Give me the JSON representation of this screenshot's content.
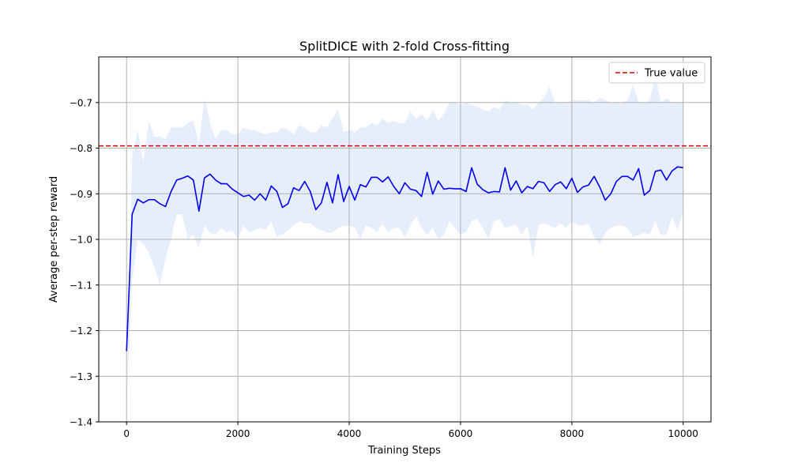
{
  "chart_data": {
    "type": "line",
    "title": "SplitDICE with 2-fold Cross-fitting",
    "xlabel": "Training Steps",
    "ylabel": "Average per-step reward",
    "xlim": [
      -500,
      10500
    ],
    "ylim": [
      -1.4,
      -0.6
    ],
    "xticks": [
      0,
      2000,
      4000,
      6000,
      8000,
      10000
    ],
    "xtick_labels": [
      "0",
      "2000",
      "4000",
      "6000",
      "8000",
      "10000"
    ],
    "yticks": [
      -1.4,
      -1.3,
      -1.2,
      -1.1,
      -1.0,
      -0.9,
      -0.8,
      -0.7
    ],
    "ytick_labels": [
      "−1.4",
      "−1.3",
      "−1.2",
      "−1.1",
      "−1.0",
      "−0.9",
      "−0.8",
      "−0.7"
    ],
    "grid": true,
    "legend_position": "top-right",
    "colors": {
      "mean": "#0000ee",
      "band": "#e6eefc",
      "true": "#dd0000",
      "grid": "#b0b0b0"
    },
    "reference_line": {
      "name": "True value",
      "y": -0.795
    },
    "x": [
      0,
      100,
      200,
      300,
      400,
      500,
      600,
      700,
      800,
      900,
      1000,
      1100,
      1200,
      1300,
      1400,
      1500,
      1600,
      1700,
      1800,
      1900,
      2000,
      2100,
      2200,
      2300,
      2400,
      2500,
      2600,
      2700,
      2800,
      2900,
      3000,
      3100,
      3200,
      3300,
      3400,
      3500,
      3600,
      3700,
      3800,
      3900,
      4000,
      4100,
      4200,
      4300,
      4400,
      4500,
      4600,
      4700,
      4800,
      4900,
      5000,
      5100,
      5200,
      5300,
      5400,
      5500,
      5600,
      5700,
      5800,
      5900,
      6000,
      6100,
      6200,
      6300,
      6400,
      6500,
      6600,
      6700,
      6800,
      6900,
      7000,
      7100,
      7200,
      7300,
      7400,
      7500,
      7600,
      7700,
      7800,
      7900,
      8000,
      8100,
      8200,
      8300,
      8400,
      8500,
      8600,
      8700,
      8800,
      8900,
      9000,
      9100,
      9200,
      9300,
      9400,
      9500,
      9600,
      9700,
      9800,
      9900,
      10000
    ],
    "mean": [
      -1.245,
      -0.945,
      -0.912,
      -0.92,
      -0.913,
      -0.913,
      -0.922,
      -0.928,
      -0.895,
      -0.87,
      -0.866,
      -0.861,
      -0.87,
      -0.938,
      -0.865,
      -0.857,
      -0.87,
      -0.878,
      -0.878,
      -0.89,
      -0.898,
      -0.906,
      -0.903,
      -0.914,
      -0.9,
      -0.914,
      -0.883,
      -0.895,
      -0.93,
      -0.922,
      -0.887,
      -0.893,
      -0.873,
      -0.895,
      -0.935,
      -0.92,
      -0.875,
      -0.92,
      -0.858,
      -0.917,
      -0.884,
      -0.914,
      -0.88,
      -0.885,
      -0.864,
      -0.864,
      -0.874,
      -0.863,
      -0.884,
      -0.9,
      -0.876,
      -0.89,
      -0.893,
      -0.906,
      -0.853,
      -0.901,
      -0.872,
      -0.89,
      -0.888,
      -0.889,
      -0.889,
      -0.895,
      -0.843,
      -0.879,
      -0.891,
      -0.898,
      -0.895,
      -0.896,
      -0.843,
      -0.892,
      -0.872,
      -0.898,
      -0.884,
      -0.889,
      -0.873,
      -0.876,
      -0.895,
      -0.88,
      -0.874,
      -0.889,
      -0.866,
      -0.897,
      -0.885,
      -0.881,
      -0.862,
      -0.885,
      -0.914,
      -0.9,
      -0.873,
      -0.862,
      -0.862,
      -0.87,
      -0.845,
      -0.903,
      -0.893,
      -0.851,
      -0.848,
      -0.87,
      -0.85,
      -0.841,
      -0.843
    ],
    "upper": [
      -1.36,
      -0.82,
      -0.76,
      -0.83,
      -0.74,
      -0.775,
      -0.775,
      -0.78,
      -0.755,
      -0.755,
      -0.755,
      -0.745,
      -0.74,
      -0.79,
      -0.69,
      -0.745,
      -0.78,
      -0.76,
      -0.76,
      -0.77,
      -0.77,
      -0.755,
      -0.76,
      -0.76,
      -0.765,
      -0.77,
      -0.765,
      -0.765,
      -0.755,
      -0.76,
      -0.77,
      -0.75,
      -0.755,
      -0.765,
      -0.765,
      -0.75,
      -0.755,
      -0.735,
      -0.715,
      -0.765,
      -0.76,
      -0.765,
      -0.755,
      -0.755,
      -0.745,
      -0.75,
      -0.735,
      -0.745,
      -0.74,
      -0.745,
      -0.745,
      -0.72,
      -0.735,
      -0.725,
      -0.74,
      -0.715,
      -0.74,
      -0.725,
      -0.7,
      -0.7,
      -0.705,
      -0.7,
      -0.705,
      -0.71,
      -0.715,
      -0.72,
      -0.71,
      -0.715,
      -0.695,
      -0.7,
      -0.7,
      -0.705,
      -0.705,
      -0.715,
      -0.7,
      -0.69,
      -0.665,
      -0.7,
      -0.7,
      -0.7,
      -0.695,
      -0.695,
      -0.695,
      -0.695,
      -0.7,
      -0.69,
      -0.695,
      -0.7,
      -0.7,
      -0.7,
      -0.695,
      -0.66,
      -0.7,
      -0.7,
      -0.695,
      -0.64,
      -0.7,
      -0.69,
      -0.7,
      -0.7,
      -0.7
    ],
    "lower": [
      -1.36,
      -1.09,
      -1.0,
      -1.01,
      -1.03,
      -1.06,
      -1.1,
      -1.04,
      -1.0,
      -0.945,
      -0.945,
      -1.0,
      -0.99,
      -1.02,
      -0.97,
      -0.985,
      -0.99,
      -0.975,
      -0.985,
      -0.98,
      -1.0,
      -0.97,
      -0.985,
      -0.98,
      -0.975,
      -0.98,
      -0.96,
      -0.995,
      -0.99,
      -0.98,
      -0.97,
      -0.96,
      -0.965,
      -0.965,
      -0.975,
      -0.98,
      -0.985,
      -0.985,
      -0.975,
      -0.97,
      -0.97,
      -0.975,
      -1.0,
      -0.97,
      -0.975,
      -0.985,
      -0.965,
      -0.985,
      -0.975,
      -0.975,
      -0.995,
      -0.97,
      -0.95,
      -0.975,
      -0.99,
      -0.975,
      -1.0,
      -0.99,
      -0.96,
      -0.975,
      -0.99,
      -0.985,
      -0.96,
      -0.955,
      -0.975,
      -1.0,
      -0.96,
      -0.955,
      -0.975,
      -0.97,
      -0.97,
      -0.99,
      -0.97,
      -1.04,
      -0.97,
      -0.965,
      -0.97,
      -0.975,
      -0.965,
      -0.975,
      -0.96,
      -0.97,
      -0.97,
      -0.965,
      -0.995,
      -1.01,
      -0.985,
      -0.975,
      -0.97,
      -0.97,
      -0.975,
      -0.995,
      -0.99,
      -0.985,
      -0.99,
      -0.96,
      -0.99,
      -0.99,
      -0.95,
      -0.98,
      -0.94
    ]
  }
}
